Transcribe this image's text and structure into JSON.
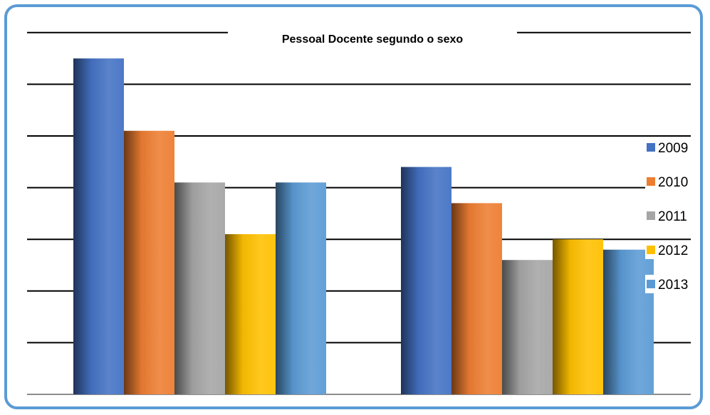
{
  "chart_data": {
    "type": "bar",
    "title": "Pessoal Docente segundo o sexo",
    "xlabel": "",
    "ylabel": "",
    "categories": [
      "",
      ""
    ],
    "series": [
      {
        "name": "2009",
        "values": [
          6.5,
          4.4
        ],
        "color": "#4472c4"
      },
      {
        "name": "2010",
        "values": [
          5.1,
          3.7
        ],
        "color": "#ed7d31"
      },
      {
        "name": "2011",
        "values": [
          4.1,
          2.6
        ],
        "color": "#a5a5a5"
      },
      {
        "name": "2012",
        "values": [
          3.1,
          3.0
        ],
        "color": "#ffc000"
      },
      {
        "name": "2013",
        "values": [
          4.1,
          2.8
        ],
        "color": "#5b9bd5"
      }
    ],
    "ylim": [
      0,
      7
    ],
    "gridlines": true,
    "legend_position": "right",
    "frame_color": "#5b9bd5"
  }
}
